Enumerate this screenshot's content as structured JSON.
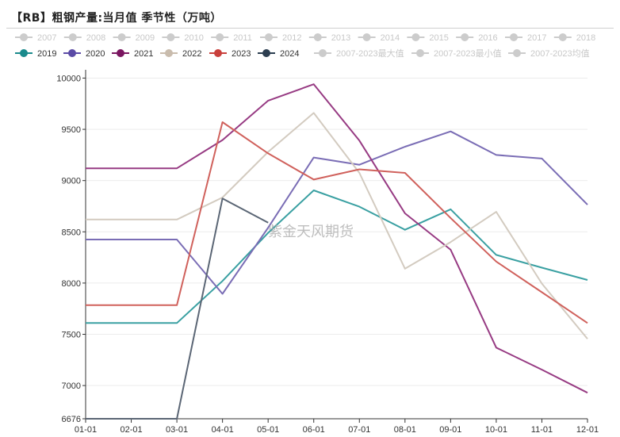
{
  "title": "【RB】粗钢产量:当月值 季节性（万吨）",
  "watermark": "紫金天风期货",
  "chart_data": {
    "type": "line",
    "title": "【RB】粗钢产量:当月值 季节性（万吨）",
    "xlabel": "",
    "ylabel": "",
    "categories": [
      "01-01",
      "02-01",
      "03-01",
      "04-01",
      "05-01",
      "06-01",
      "07-01",
      "08-01",
      "09-01",
      "10-01",
      "11-01",
      "12-01"
    ],
    "ylim": [
      6676,
      10050
    ],
    "yticks": [
      6676,
      7000,
      7500,
      8000,
      8500,
      9000,
      9500,
      10000
    ],
    "grid": "horizontal",
    "legend_position": "top",
    "legend": [
      {
        "name": "2007",
        "color": "#cccccc",
        "inactive": true
      },
      {
        "name": "2008",
        "color": "#cccccc",
        "inactive": true
      },
      {
        "name": "2009",
        "color": "#cccccc",
        "inactive": true
      },
      {
        "name": "2010",
        "color": "#cccccc",
        "inactive": true
      },
      {
        "name": "2011",
        "color": "#cccccc",
        "inactive": true
      },
      {
        "name": "2012",
        "color": "#cccccc",
        "inactive": true
      },
      {
        "name": "2013",
        "color": "#cccccc",
        "inactive": true
      },
      {
        "name": "2014",
        "color": "#cccccc",
        "inactive": true
      },
      {
        "name": "2015",
        "color": "#cccccc",
        "inactive": true
      },
      {
        "name": "2016",
        "color": "#cccccc",
        "inactive": true
      },
      {
        "name": "2017",
        "color": "#cccccc",
        "inactive": true
      },
      {
        "name": "2018",
        "color": "#cccccc",
        "inactive": true
      },
      {
        "name": "2019",
        "color": "#1a8a8c",
        "inactive": false
      },
      {
        "name": "2020",
        "color": "#5b4ba6",
        "inactive": false
      },
      {
        "name": "2021",
        "color": "#7a1660",
        "inactive": false
      },
      {
        "name": "2022",
        "color": "#c9bcad",
        "inactive": false
      },
      {
        "name": "2023",
        "color": "#c9403c",
        "inactive": false
      },
      {
        "name": "2024",
        "color": "#2c3e50",
        "inactive": false
      },
      {
        "name": "2007-2023最大值",
        "color": "#cccccc",
        "inactive": true
      },
      {
        "name": "2007-2023最小值",
        "color": "#cccccc",
        "inactive": true
      },
      {
        "name": "2007-2023均值",
        "color": "#cccccc",
        "inactive": true
      }
    ],
    "series": [
      {
        "name": "2019",
        "color": "#3aa0a2",
        "values": [
          7610,
          7610,
          7610,
          8020,
          8490,
          8905,
          8745,
          8520,
          8720,
          8275,
          8150,
          8030
        ]
      },
      {
        "name": "2020",
        "color": "#7a6db5",
        "values": [
          8425,
          8425,
          8425,
          7895,
          8540,
          9225,
          9155,
          9330,
          9480,
          9250,
          9215,
          8765
        ]
      },
      {
        "name": "2021",
        "color": "#973b83",
        "values": [
          9120,
          9120,
          9120,
          9395,
          9780,
          9940,
          9390,
          8680,
          8325,
          7370,
          7155,
          6930
        ]
      },
      {
        "name": "2022",
        "color": "#d3cbc0",
        "values": [
          8620,
          8620,
          8620,
          8835,
          9280,
          9660,
          9075,
          8140,
          8400,
          8695,
          7995,
          7455
        ]
      },
      {
        "name": "2023",
        "color": "#d0615c",
        "values": [
          7785,
          7785,
          7785,
          9570,
          9265,
          9010,
          9110,
          9075,
          8635,
          8210,
          7910,
          7610
        ]
      },
      {
        "name": "2024",
        "color": "#5b6675",
        "values": [
          6676,
          6676,
          6676,
          8825,
          8590,
          null,
          null,
          null,
          null,
          null,
          null,
          null
        ]
      }
    ]
  }
}
